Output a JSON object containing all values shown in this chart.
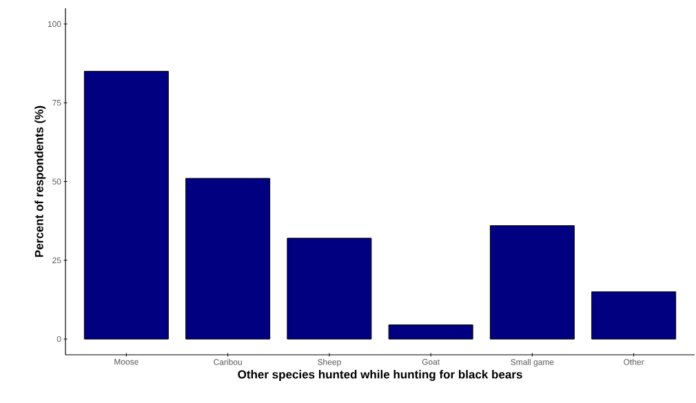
{
  "chart_data": {
    "type": "bar",
    "xlabel": "Other species hunted while hunting for black bears",
    "ylabel": "Percent of respondents (%)",
    "categories": [
      "Moose",
      "Caribou",
      "Sheep",
      "Goat",
      "Small game",
      "Other"
    ],
    "values": [
      85,
      51,
      32,
      4.5,
      36,
      15
    ],
    "color": "#000080",
    "ylim": [
      -5,
      105
    ],
    "yticks": [
      0,
      25,
      50,
      75,
      100
    ],
    "grid": false
  }
}
